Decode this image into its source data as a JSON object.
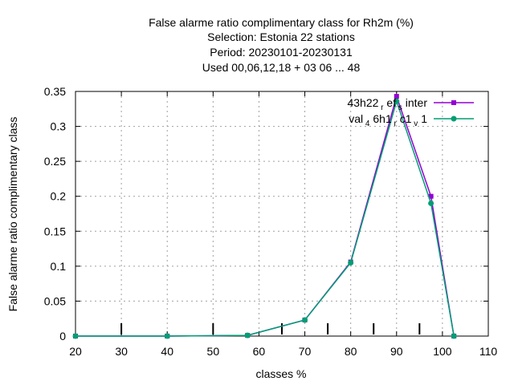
{
  "chart_data": {
    "type": "line",
    "title_lines": [
      "False alarme ratio complimentary class  for Rh2m (%)",
      "Selection: Estonia      22 stations",
      "Period: 20230101-20230131",
      "Used  00,06,12,18  + 03 06 ... 48"
    ],
    "xlabel": "classes %",
    "ylabel": "False alarme ratio complimentary class",
    "xlim": [
      20,
      110
    ],
    "ylim": [
      0,
      0.35
    ],
    "x_ticks": [
      20,
      30,
      40,
      50,
      60,
      70,
      80,
      90,
      100,
      110
    ],
    "x_tick_labels": [
      "20",
      "30",
      "40",
      "50",
      "60",
      "70",
      "80",
      "90",
      "100",
      "110"
    ],
    "y_ticks": [
      0,
      0.05,
      0.1,
      0.15,
      0.2,
      0.25,
      0.3,
      0.35
    ],
    "y_tick_labels": [
      "0",
      "0.05",
      "0.1",
      "0.15",
      "0.2",
      "0.25",
      "0.3",
      "0.35"
    ],
    "grid": true,
    "legend_position": "top-right",
    "extra_minor_ticks_x": [
      30,
      50,
      65,
      75,
      85,
      95
    ],
    "series": [
      {
        "name": "43h22 r ef s inter",
        "name_parts": [
          "43h22",
          "r",
          "ef",
          "s",
          "inter"
        ],
        "color": "#9400d3",
        "marker": "square",
        "x": [
          20,
          40,
          57.5,
          70,
          80,
          90,
          97.5,
          102.5
        ],
        "values": [
          0.0,
          0.0,
          0.001,
          0.023,
          0.106,
          0.343,
          0.2,
          0.0
        ]
      },
      {
        "name": "val 4 6h1 r c1 v 1",
        "name_parts": [
          "val",
          "4",
          "6h1",
          "r",
          "c1",
          "v",
          "1"
        ],
        "color": "#009e73",
        "marker": "circle",
        "x": [
          20,
          40,
          57.5,
          70,
          80,
          90,
          97.5,
          102.5
        ],
        "values": [
          0.0,
          0.0,
          0.001,
          0.023,
          0.105,
          0.336,
          0.19,
          0.0
        ]
      }
    ]
  }
}
